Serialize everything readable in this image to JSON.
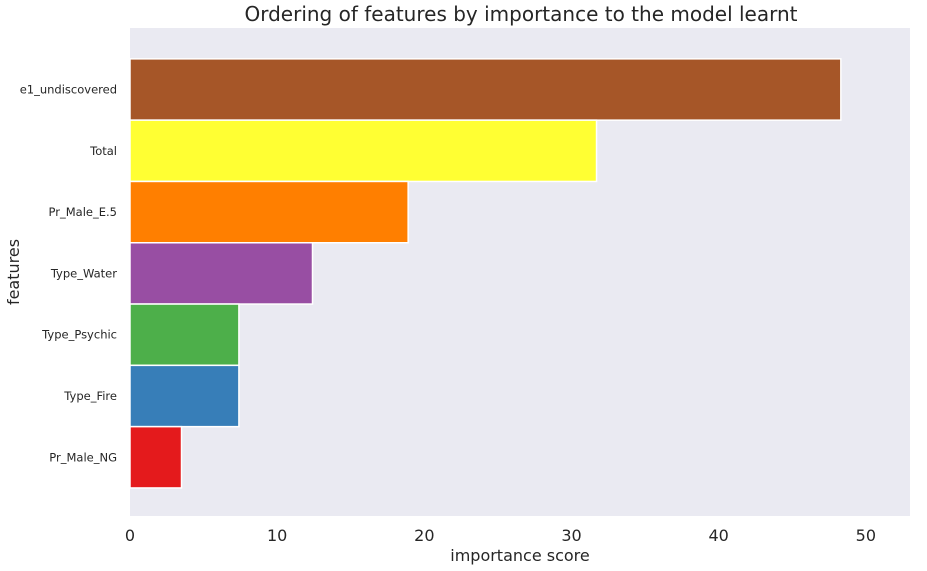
{
  "chart_data": {
    "type": "bar",
    "orientation": "horizontal",
    "title": "Ordering of features by importance to the model learnt",
    "xlabel": "importance score",
    "ylabel": "features",
    "xlim": [
      0,
      53
    ],
    "xticks": [
      0,
      10,
      20,
      30,
      40,
      50
    ],
    "grid": false,
    "background": "#eaeaf2",
    "categories": [
      "e1_undiscovered",
      "Total",
      "Pr_Male_E.5",
      "Type_Water",
      "Type_Psychic",
      "Type_Fire",
      "Pr_Male_NG"
    ],
    "values": [
      48.3,
      31.7,
      18.9,
      12.4,
      7.4,
      7.4,
      3.5
    ],
    "colors": [
      "#a65628",
      "#ffff33",
      "#ff7f00",
      "#984ea3",
      "#4daf4a",
      "#377eb8",
      "#e41a1c"
    ]
  }
}
